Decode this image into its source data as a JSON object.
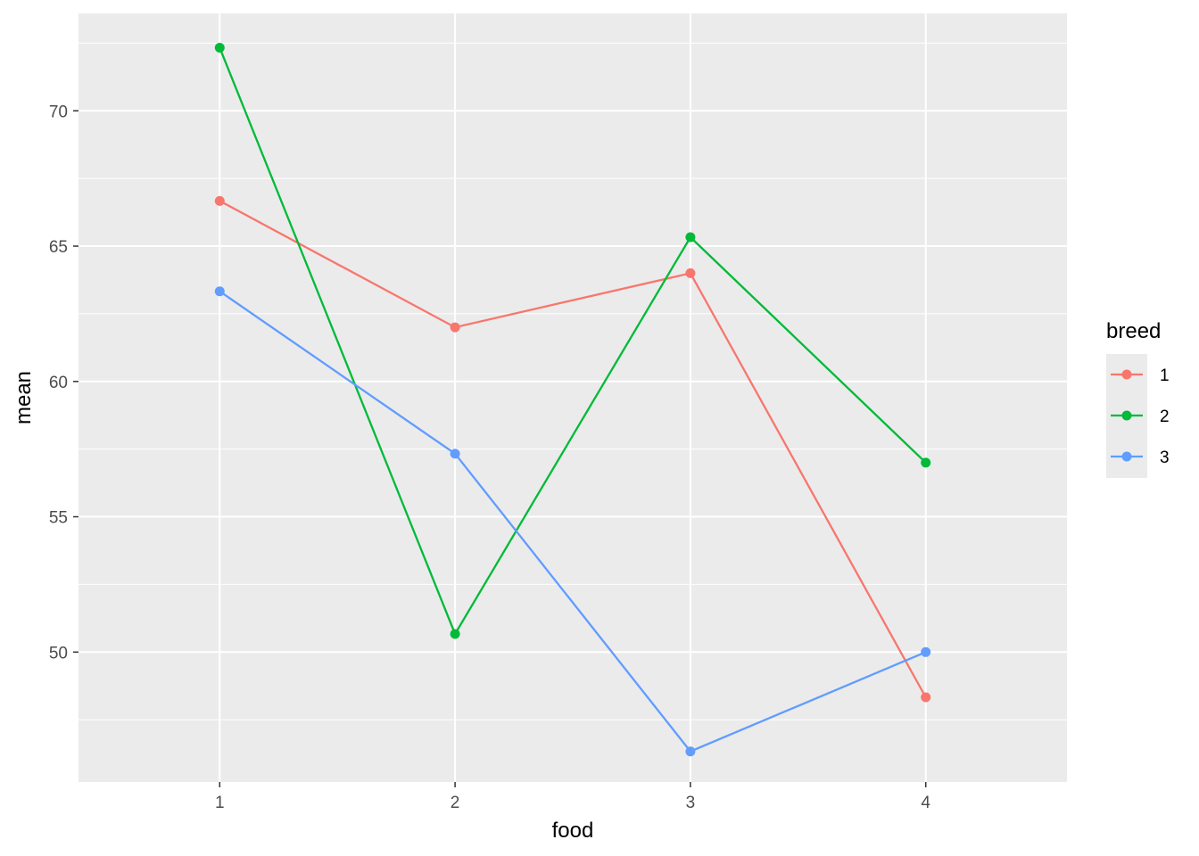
{
  "chart_data": {
    "type": "line",
    "xlabel": "food",
    "ylabel": "mean",
    "categories": [
      "1",
      "2",
      "3",
      "4"
    ],
    "xlim": [
      0.4,
      4.6
    ],
    "ylim": [
      45.2,
      73.6
    ],
    "yticks": [
      50,
      55,
      60,
      65,
      70
    ],
    "grid": true,
    "legend": {
      "title": "breed",
      "position": "right"
    },
    "series": [
      {
        "name": "1",
        "color": "#F8766D",
        "values": [
          66.67,
          62.0,
          64.0,
          48.33
        ]
      },
      {
        "name": "2",
        "color": "#00BA38",
        "values": [
          72.33,
          50.67,
          65.33,
          57.0
        ]
      },
      {
        "name": "3",
        "color": "#619CFF",
        "values": [
          63.33,
          57.33,
          46.33,
          50.0
        ]
      }
    ]
  }
}
